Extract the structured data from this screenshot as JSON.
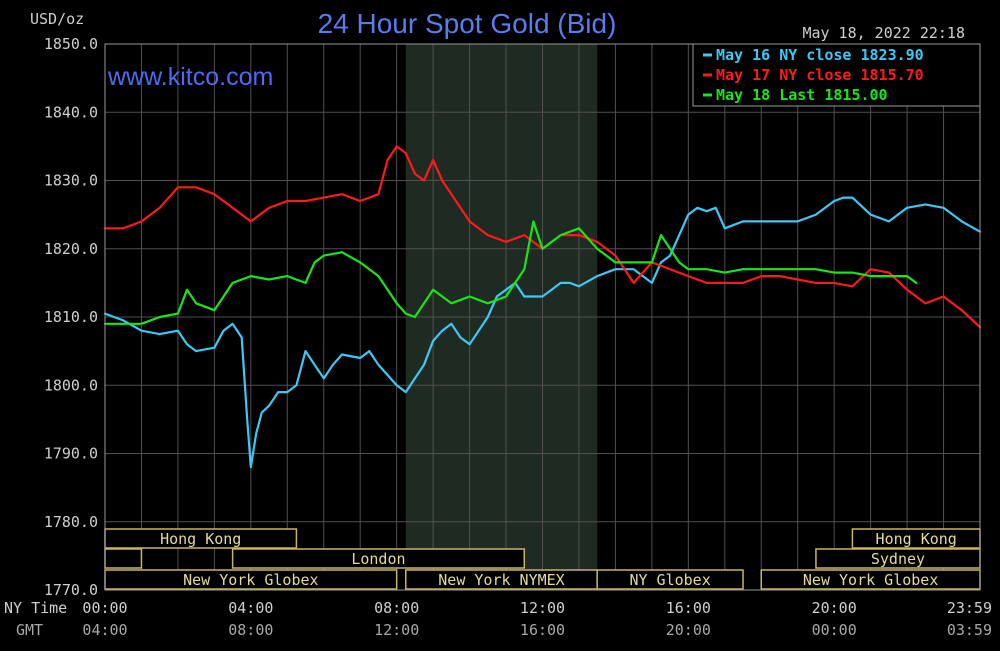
{
  "chart_data": {
    "type": "line",
    "title": "24 Hour Spot Gold (Bid)",
    "watermark": "www.kitco.com",
    "timestamp": "May 18, 2022 22:18",
    "ylabel": "USD/oz",
    "ylim": [
      1770,
      1850
    ],
    "xlim": [
      0,
      24
    ],
    "y_ticks": [
      "1850.0",
      "1840.0",
      "1830.0",
      "1820.0",
      "1810.0",
      "1800.0",
      "1790.0",
      "1780.0",
      "1770.0"
    ],
    "x_ticks": [
      {
        "x": 0,
        "ny": "00:00",
        "gmt": "04:00"
      },
      {
        "x": 4,
        "ny": "04:00",
        "gmt": "08:00"
      },
      {
        "x": 8,
        "ny": "08:00",
        "gmt": "12:00"
      },
      {
        "x": 12,
        "ny": "12:00",
        "gmt": "16:00"
      },
      {
        "x": 16,
        "ny": "16:00",
        "gmt": "20:00"
      },
      {
        "x": 20,
        "ny": "20:00",
        "gmt": "00:00"
      },
      {
        "x": 24,
        "ny": "23:59",
        "gmt": "03:59"
      }
    ],
    "x_row_labels": {
      "ny": "NY Time",
      "gmt": "GMT"
    },
    "grid": true,
    "legend_position": "top-right",
    "shaded_session": [
      8.25,
      13.5
    ],
    "sessions": [
      {
        "label": "Hong Kong",
        "start": 0,
        "end": 5.25,
        "row": 0
      },
      {
        "label": "Hong Kong",
        "start": 20.5,
        "end": 24,
        "row": 0
      },
      {
        "label": "",
        "start": 0,
        "end": 1,
        "row": 1
      },
      {
        "label": "London",
        "start": 3.5,
        "end": 11.5,
        "row": 1
      },
      {
        "label": "Sydney",
        "start": 19.5,
        "end": 24,
        "row": 1
      },
      {
        "label": "New York Globex",
        "start": 0,
        "end": 8,
        "row": 2
      },
      {
        "label": "New York NYMEX",
        "start": 8.25,
        "end": 13.5,
        "row": 2
      },
      {
        "label": "NY Globex",
        "start": 13.5,
        "end": 17.5,
        "row": 2
      },
      {
        "label": "New York Globex",
        "start": 18,
        "end": 24,
        "row": 2
      }
    ],
    "series": [
      {
        "name": "May 16 NY close 1823.90",
        "color": "#3ec8f5",
        "x": [
          0,
          0.5,
          1,
          1.5,
          2,
          2.25,
          2.5,
          3,
          3.25,
          3.5,
          3.75,
          3.9,
          4,
          4.15,
          4.3,
          4.5,
          4.75,
          5,
          5.25,
          5.5,
          5.75,
          6,
          6.25,
          6.5,
          7,
          7.25,
          7.5,
          8,
          8.25,
          8.5,
          8.75,
          9,
          9.25,
          9.5,
          9.75,
          10,
          10.25,
          10.5,
          10.75,
          11,
          11.25,
          11.5,
          12,
          12.25,
          12.5,
          12.75,
          13,
          13.5,
          14,
          14.5,
          15,
          15.25,
          15.5,
          15.75,
          16,
          16.25,
          16.5,
          16.75,
          17,
          17.5,
          18,
          18.5,
          19,
          19.5,
          20,
          20.25,
          20.5,
          21,
          21.5,
          22,
          22.5,
          23,
          23.5,
          24
        ],
        "values": [
          1810.5,
          1809.5,
          1808,
          1807.5,
          1808,
          1806,
          1805,
          1805.5,
          1808,
          1809,
          1807,
          1795,
          1788,
          1793,
          1796,
          1797,
          1799,
          1799,
          1800,
          1805,
          1803,
          1801,
          1803,
          1804.5,
          1804,
          1805,
          1803,
          1800,
          1799,
          1801,
          1803,
          1806.5,
          1808,
          1809,
          1807,
          1806,
          1808,
          1810,
          1813,
          1814,
          1815,
          1813,
          1813,
          1814,
          1815,
          1815,
          1814.5,
          1816,
          1817,
          1817,
          1815,
          1818,
          1819,
          1822,
          1825,
          1826,
          1825.5,
          1826,
          1823,
          1824,
          1824,
          1824,
          1824,
          1825,
          1827,
          1827.5,
          1827.5,
          1825,
          1824,
          1826,
          1826.5,
          1826,
          1824,
          1822.5
        ]
      },
      {
        "name": "May 17 NY close 1815.70",
        "color": "#ff1a1a",
        "x": [
          0,
          0.5,
          1,
          1.5,
          2,
          2.5,
          3,
          3.5,
          4,
          4.5,
          5,
          5.5,
          6,
          6.5,
          7,
          7.5,
          7.75,
          8,
          8.25,
          8.5,
          8.75,
          9,
          9.25,
          9.5,
          9.75,
          10,
          10.5,
          11,
          11.5,
          12,
          12.5,
          13,
          13.5,
          14,
          14.25,
          14.5,
          15,
          15.5,
          16,
          16.5,
          17,
          17.5,
          18,
          18.5,
          19,
          19.5,
          20,
          20.5,
          21,
          21.5,
          22,
          22.5,
          23,
          23.5,
          24
        ],
        "values": [
          1823,
          1823,
          1824,
          1826,
          1829,
          1829,
          1828,
          1826,
          1824,
          1826,
          1827,
          1827,
          1827.5,
          1828,
          1827,
          1828,
          1833,
          1835,
          1834,
          1831,
          1830,
          1833,
          1830,
          1828,
          1826,
          1824,
          1822,
          1821,
          1822,
          1820,
          1822,
          1822,
          1821,
          1819,
          1817,
          1815,
          1818,
          1817,
          1816,
          1815,
          1815,
          1815,
          1816,
          1816,
          1815.5,
          1815,
          1815,
          1814.5,
          1817,
          1816.5,
          1814,
          1812,
          1813,
          1811,
          1808.5
        ]
      },
      {
        "name": "May 18 Last 1815.00",
        "color": "#19e619",
        "x": [
          0,
          0.5,
          1,
          1.5,
          2,
          2.25,
          2.5,
          3,
          3.25,
          3.5,
          4,
          4.5,
          5,
          5.5,
          5.75,
          6,
          6.5,
          7,
          7.5,
          8,
          8.25,
          8.5,
          8.75,
          9,
          9.5,
          10,
          10.5,
          11,
          11.5,
          11.75,
          12,
          12.5,
          13,
          13.5,
          14,
          14.5,
          15,
          15.25,
          15.5,
          15.75,
          16,
          16.5,
          17,
          17.5,
          18,
          18.5,
          19,
          19.5,
          20,
          20.5,
          21,
          21.5,
          22,
          22.25
        ],
        "values": [
          1809,
          1809,
          1809,
          1810,
          1810.5,
          1814,
          1812,
          1811,
          1813,
          1815,
          1816,
          1815.5,
          1816,
          1815,
          1818,
          1819,
          1819.5,
          1818,
          1816,
          1812,
          1810.5,
          1810,
          1812,
          1814,
          1812,
          1813,
          1812,
          1813,
          1817,
          1824,
          1820,
          1822,
          1823,
          1820,
          1818,
          1818,
          1818,
          1822,
          1820,
          1818,
          1817,
          1817,
          1816.5,
          1817,
          1817,
          1817,
          1817,
          1817,
          1816.5,
          1816.5,
          1816,
          1816,
          1816,
          1815
        ]
      }
    ]
  }
}
